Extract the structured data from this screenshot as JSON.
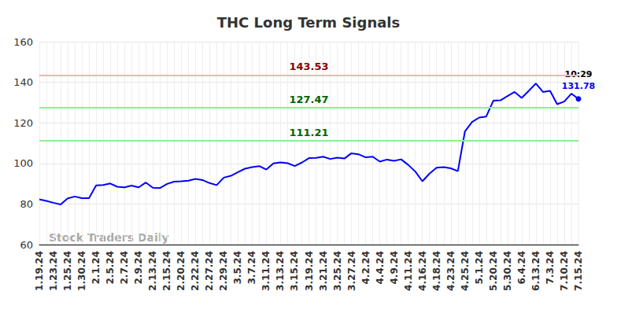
{
  "chart_data": {
    "type": "line",
    "title": "THC Long Term Signals",
    "categories": [
      "1.19.24",
      null,
      "1.23.24",
      null,
      "1.25.24",
      null,
      "1.30.24",
      null,
      "2.1.24",
      null,
      "2.5.24",
      null,
      "2.7.24",
      null,
      "2.9.24",
      null,
      "2.13.24",
      null,
      "2.15.24",
      null,
      "2.20.24",
      null,
      "2.22.24",
      null,
      "2.27.24",
      null,
      "2.29.24",
      null,
      "3.5.24",
      null,
      "3.7.24",
      null,
      "3.11.24",
      null,
      "3.13.24",
      null,
      "3.15.24",
      null,
      "3.19.24",
      null,
      "3.21.24",
      null,
      "3.25.24",
      null,
      "3.27.24",
      null,
      "4.2.24",
      null,
      "4.4.24",
      null,
      "4.9.24",
      null,
      "4.11.24",
      null,
      "4.16.24",
      null,
      "4.18.24",
      null,
      "4.23.24",
      null,
      "4.25.24",
      null,
      "5.1.24",
      null,
      "5.20.24",
      null,
      "5.30.24",
      null,
      "6.4.24",
      null,
      "6.13.24",
      null,
      "7.3.24",
      null,
      "7.10.24",
      null,
      "7.15.24"
    ],
    "values": [
      82.3,
      81.5,
      80.6,
      79.8,
      82.8,
      83.7,
      82.9,
      82.9,
      89.2,
      89.4,
      90.1,
      88.5,
      88.2,
      89.1,
      88.2,
      90.6,
      88.0,
      87.9,
      89.9,
      91.0,
      91.2,
      91.5,
      92.4,
      91.8,
      90.3,
      89.3,
      93.0,
      93.9,
      95.7,
      97.4,
      98.2,
      98.7,
      97.0,
      100.0,
      100.5,
      100.1,
      98.7,
      100.4,
      102.6,
      102.7,
      103.3,
      102.2,
      102.8,
      102.4,
      105.0,
      104.5,
      103.0,
      103.3,
      100.9,
      101.9,
      101.3,
      102.0,
      99.3,
      96.0,
      91.2,
      95.0,
      97.9,
      98.2,
      97.6,
      96.2,
      115.8,
      120.4,
      122.6,
      123.1,
      130.9,
      131.1,
      133.2,
      135.2,
      132.3,
      135.8,
      139.4,
      135.2,
      135.8,
      129.2,
      130.5,
      134.4,
      131.78
    ],
    "color": "#0000ff",
    "ylim": [
      60,
      160
    ],
    "yticks": [
      60,
      80,
      100,
      120,
      140,
      160
    ],
    "grid": true,
    "reference_lines": [
      {
        "value": 143.53,
        "color": "#8b0000",
        "line_color": "#f4b4b4"
      },
      {
        "value": 127.47,
        "color": "#006400",
        "line_color": "#90ee90"
      },
      {
        "value": 111.21,
        "color": "#006400",
        "line_color": "#90ee90"
      }
    ],
    "annotation": "10:29",
    "watermark": "Stock Traders Daily"
  }
}
